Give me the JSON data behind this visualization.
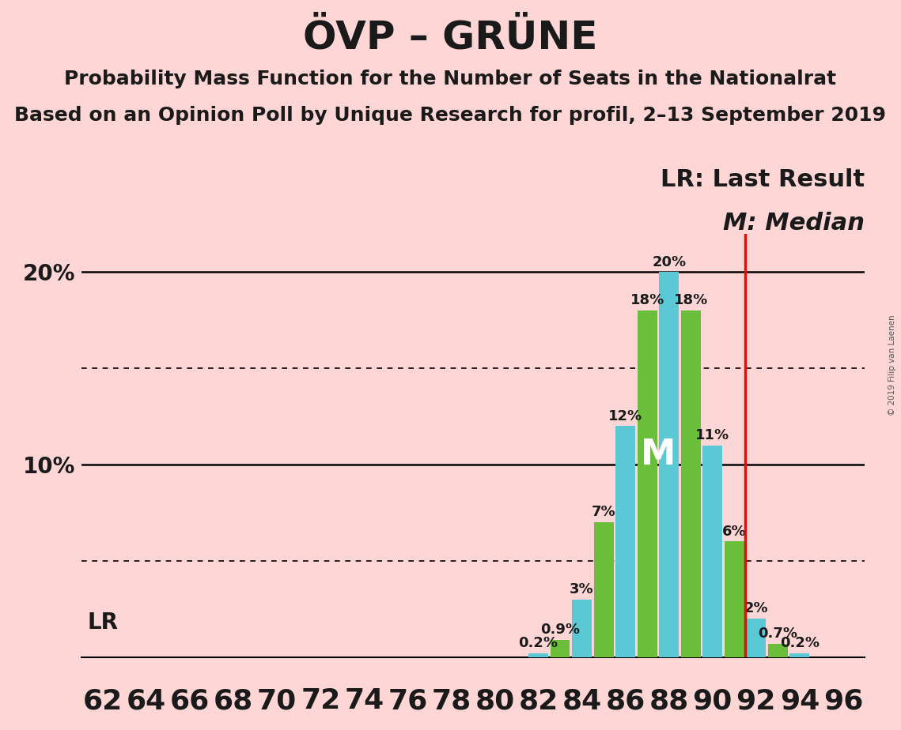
{
  "title": "ÖVP – GRÜNE",
  "subtitle1": "Probability Mass Function for the Number of Seats in the Nationalrat",
  "subtitle2": "Based on an Opinion Poll by Unique Research for profil, 2–13 September 2019",
  "copyright": "© 2019 Filip van Laenen",
  "background_color": "#ffd6d6",
  "bar_color_cyan": "#5bc8d5",
  "bar_color_green": "#6abf3a",
  "lr_line_color": "#ff0000",
  "lr_line_x": 91.5,
  "median_x": 87.5,
  "median_label": "M",
  "median_label_color": "#ffffff",
  "lr_label": "LR: Last Result",
  "m_label": "M: Median",
  "lr_text_x_label": "LR",
  "seats": [
    62,
    63,
    64,
    65,
    66,
    67,
    68,
    69,
    70,
    71,
    72,
    73,
    74,
    75,
    76,
    77,
    78,
    79,
    80,
    81,
    82,
    83,
    84,
    85,
    86,
    87,
    88,
    89,
    90,
    91,
    92,
    93,
    94,
    95,
    96,
    97
  ],
  "probabilities": [
    0,
    0,
    0,
    0,
    0,
    0,
    0,
    0,
    0,
    0,
    0,
    0,
    0,
    0,
    0,
    0,
    0,
    0,
    0,
    0,
    0.2,
    0.9,
    3,
    7,
    12,
    18,
    20,
    18,
    11,
    6,
    2,
    0.7,
    0.2,
    0,
    0,
    0
  ],
  "colors": [
    "#5bc8d5",
    "#6abf3a",
    "#5bc8d5",
    "#6abf3a",
    "#5bc8d5",
    "#6abf3a",
    "#5bc8d5",
    "#6abf3a",
    "#5bc8d5",
    "#6abf3a",
    "#5bc8d5",
    "#6abf3a",
    "#5bc8d5",
    "#6abf3a",
    "#5bc8d5",
    "#6abf3a",
    "#5bc8d5",
    "#6abf3a",
    "#5bc8d5",
    "#6abf3a",
    "#5bc8d5",
    "#6abf3a",
    "#5bc8d5",
    "#6abf3a",
    "#5bc8d5",
    "#6abf3a",
    "#5bc8d5",
    "#6abf3a",
    "#5bc8d5",
    "#6abf3a",
    "#5bc8d5",
    "#6abf3a",
    "#5bc8d5",
    "#6abf3a",
    "#5bc8d5",
    "#6abf3a"
  ],
  "xlim": [
    61,
    97
  ],
  "ylim": [
    0,
    22
  ],
  "yticks": [
    0,
    10,
    20
  ],
  "ytick_labels": [
    "",
    "10%",
    "20%"
  ],
  "xticks": [
    62,
    64,
    66,
    68,
    70,
    72,
    74,
    76,
    78,
    80,
    82,
    84,
    86,
    88,
    90,
    92,
    94,
    96
  ],
  "hlines_solid": [
    10,
    20
  ],
  "hlines_dotted": [
    5,
    15
  ],
  "bar_width": 0.9,
  "title_fontsize": 36,
  "subtitle_fontsize": 18,
  "label_fontsize": 13,
  "axis_tick_fontsize": 20,
  "lr_fontsize": 20,
  "legend_fontsize": 22
}
